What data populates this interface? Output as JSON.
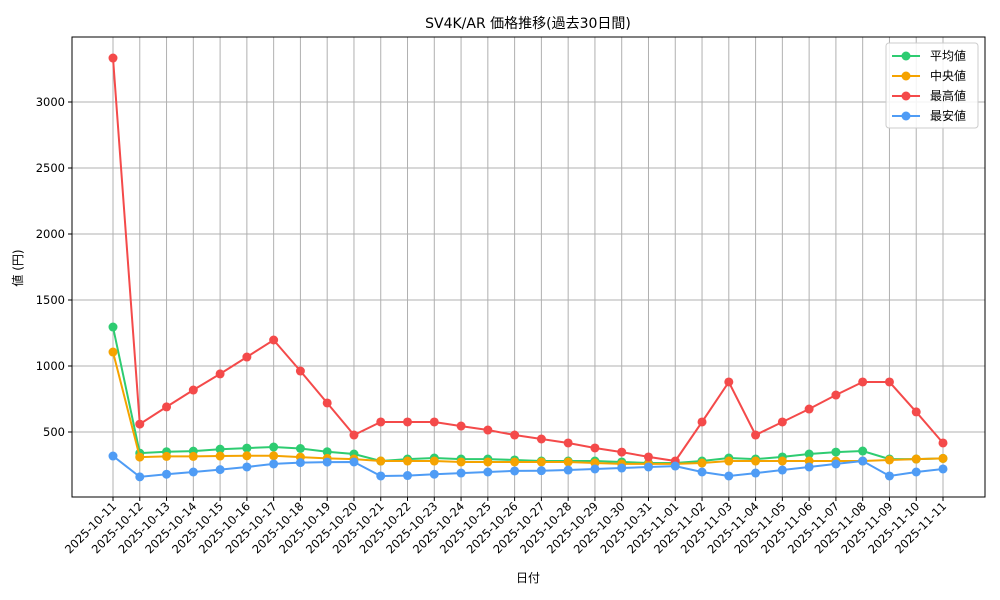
{
  "chart_data": {
    "type": "line",
    "title": "SV4K/AR 価格推移(過去30日間)",
    "xlabel": "日付",
    "ylabel": "値 (円)",
    "ylim": [
      0,
      3450
    ],
    "yticks": [
      500,
      1000,
      1500,
      2000,
      2500,
      3000
    ],
    "grid": true,
    "legend_position": "upper right",
    "x": [
      "2025-10-11",
      "2025-10-12",
      "2025-10-13",
      "2025-10-14",
      "2025-10-15",
      "2025-10-16",
      "2025-10-17",
      "2025-10-18",
      "2025-10-19",
      "2025-10-20",
      "2025-10-21",
      "2025-10-22",
      "2025-10-23",
      "2025-10-24",
      "2025-10-25",
      "2025-10-26",
      "2025-10-27",
      "2025-10-28",
      "2025-10-29",
      "2025-10-30",
      "2025-10-31",
      "2025-11-01",
      "2025-11-02",
      "2025-11-03",
      "2025-11-04",
      "2025-11-05",
      "2025-11-06",
      "2025-11-07",
      "2025-11-08",
      "2025-11-09",
      "2025-11-10",
      "2025-11-11"
    ],
    "series": [
      {
        "name": "平均値",
        "color": "#2ecc71",
        "values": [
          1295,
          340,
          350,
          355,
          370,
          378,
          386,
          375,
          350,
          333,
          280,
          295,
          303,
          295,
          295,
          288,
          280,
          280,
          280,
          273,
          265,
          265,
          280,
          303,
          295,
          311,
          333,
          348,
          356,
          295,
          295,
          300
        ]
      },
      {
        "name": "中央値",
        "color": "#f5a300",
        "values": [
          1106,
          310,
          315,
          315,
          318,
          320,
          320,
          310,
          300,
          295,
          280,
          280,
          280,
          273,
          273,
          273,
          273,
          273,
          265,
          258,
          258,
          258,
          265,
          280,
          280,
          280,
          280,
          280,
          280,
          288,
          295,
          300
        ]
      },
      {
        "name": "最高値",
        "color": "#f44a4a",
        "values": [
          3333,
          560,
          690,
          818,
          940,
          1068,
          1197,
          962,
          720,
          477,
          576,
          576,
          576,
          545,
          515,
          477,
          447,
          417,
          379,
          348,
          311,
          280,
          576,
          879,
          477,
          576,
          674,
          780,
          879,
          879,
          652,
          417
        ]
      },
      {
        "name": "最安値",
        "color": "#4f9cf5",
        "values": [
          318,
          160,
          180,
          197,
          215,
          235,
          258,
          268,
          272,
          273,
          167,
          170,
          180,
          189,
          197,
          205,
          207,
          212,
          220,
          227,
          235,
          242,
          197,
          167,
          189,
          212,
          235,
          258,
          280,
          167,
          197,
          220
        ]
      }
    ]
  }
}
